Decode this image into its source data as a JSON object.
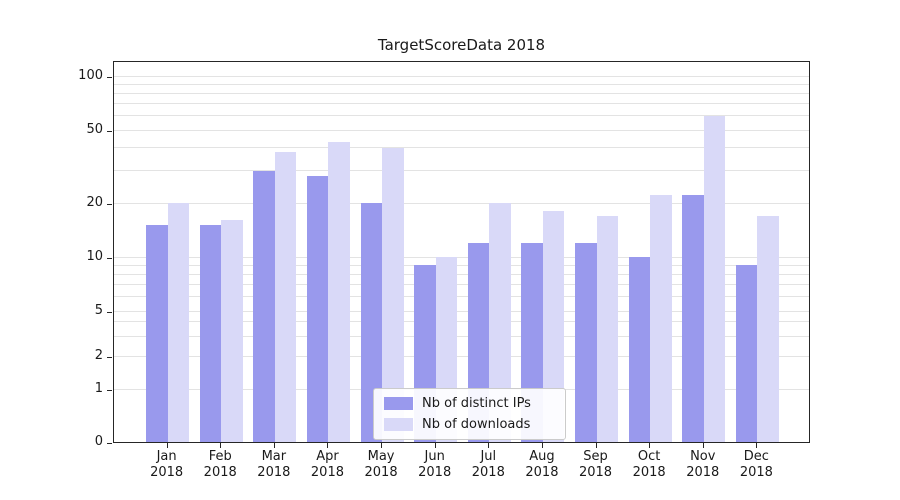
{
  "chart_data": {
    "type": "bar",
    "title": "TargetScoreData 2018",
    "categories": [
      "Jan",
      "Feb",
      "Mar",
      "Apr",
      "May",
      "Jun",
      "Jul",
      "Aug",
      "Sep",
      "Oct",
      "Nov",
      "Dec"
    ],
    "x_tick_second_line": "2018",
    "series": [
      {
        "name": "Nb of distinct IPs",
        "color": "#9999ed",
        "values": [
          15,
          15,
          30,
          28,
          20,
          9,
          12,
          12,
          12,
          10,
          22,
          9
        ]
      },
      {
        "name": "Nb of downloads",
        "color": "#d9d9f8",
        "values": [
          20,
          16,
          38,
          43,
          40,
          10,
          20,
          18,
          17,
          22,
          60,
          17
        ]
      }
    ],
    "y_scale": "symlog",
    "y_ticks": [
      0,
      1,
      2,
      5,
      10,
      20,
      50,
      100
    ],
    "grid_values": [
      1,
      2,
      3,
      4,
      5,
      6,
      7,
      8,
      9,
      10,
      20,
      30,
      40,
      50,
      60,
      70,
      80,
      90,
      100
    ],
    "ylim": [
      0,
      115
    ],
    "grid": true,
    "legend_position": "lower center"
  },
  "colors": {
    "grid": "#e3e3e3",
    "axis": "#262626",
    "background": "#ffffff",
    "legend_border": "#cbcbcb",
    "text": "#1a1a1a"
  }
}
